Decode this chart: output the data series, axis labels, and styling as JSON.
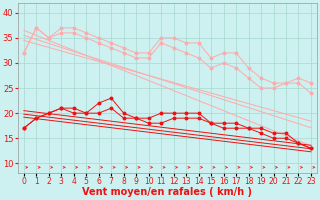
{
  "x": [
    0,
    1,
    2,
    3,
    4,
    5,
    6,
    7,
    8,
    9,
    10,
    11,
    12,
    13,
    14,
    15,
    16,
    17,
    18,
    19,
    20,
    21,
    22,
    23
  ],
  "lines_pink_data": [
    [
      32,
      37,
      35,
      37,
      37,
      36,
      35,
      34,
      33,
      32,
      32,
      35,
      35,
      34,
      34,
      31,
      32,
      32,
      29,
      27,
      26,
      26,
      27,
      26
    ],
    [
      32,
      37,
      35,
      36,
      36,
      35,
      34,
      33,
      32,
      31,
      31,
      34,
      33,
      32,
      31,
      29,
      30,
      29,
      27,
      25,
      25,
      26,
      26,
      24
    ]
  ],
  "lines_pink_trend": [
    [
      36.5,
      35.5,
      34.5,
      33.5,
      32.5,
      31.5,
      30.5,
      29.5,
      28.5,
      27.5,
      26.5,
      25.5,
      24.5,
      23.5,
      22.5,
      21.5,
      20.5,
      19.5,
      18.5,
      17.5,
      16.5,
      15.5,
      14.5,
      13.5
    ],
    [
      35.5,
      34.7,
      33.9,
      33.1,
      32.3,
      31.5,
      30.7,
      29.9,
      29.1,
      28.3,
      27.5,
      26.7,
      25.9,
      25.1,
      24.3,
      23.5,
      22.7,
      21.9,
      21.1,
      20.3,
      19.5,
      18.7,
      17.9,
      17.1
    ],
    [
      34.5,
      33.8,
      33.1,
      32.4,
      31.7,
      31.0,
      30.3,
      29.6,
      28.9,
      28.2,
      27.5,
      26.8,
      26.1,
      25.4,
      24.7,
      24.0,
      23.3,
      22.6,
      21.9,
      21.2,
      20.5,
      19.8,
      19.1,
      18.4
    ]
  ],
  "lines_red_data": [
    [
      17,
      19,
      20,
      21,
      21,
      20,
      22,
      23,
      20,
      19,
      19,
      20,
      20,
      20,
      20,
      18,
      18,
      18,
      17,
      17,
      16,
      16,
      14,
      13
    ],
    [
      17,
      19,
      20,
      21,
      20,
      20,
      20,
      21,
      19,
      19,
      18,
      18,
      19,
      19,
      19,
      18,
      17,
      17,
      17,
      16,
      15,
      15,
      14,
      13
    ]
  ],
  "lines_red_trend": [
    [
      20.5,
      20.2,
      19.9,
      19.6,
      19.3,
      19.0,
      18.7,
      18.4,
      18.1,
      17.8,
      17.5,
      17.2,
      16.9,
      16.6,
      16.3,
      16.0,
      15.7,
      15.4,
      15.1,
      14.8,
      14.5,
      14.2,
      13.9,
      13.6
    ],
    [
      19.8,
      19.5,
      19.2,
      18.9,
      18.6,
      18.3,
      18.0,
      17.7,
      17.4,
      17.1,
      16.8,
      16.5,
      16.2,
      15.9,
      15.6,
      15.3,
      15.0,
      14.7,
      14.4,
      14.1,
      13.8,
      13.5,
      13.2,
      12.9
    ],
    [
      19.2,
      18.9,
      18.6,
      18.3,
      18.0,
      17.7,
      17.4,
      17.1,
      16.8,
      16.5,
      16.2,
      15.9,
      15.6,
      15.3,
      15.0,
      14.7,
      14.4,
      14.1,
      13.8,
      13.5,
      13.2,
      12.9,
      12.6,
      12.3
    ]
  ],
  "bg_color": "#cdf0f0",
  "grid_color": "#a8d8d0",
  "pink_color": "#ffaaaa",
  "red_color": "#ee1111",
  "arrow_color": "#ee3333",
  "xlabel": "Vent moyen/en rafales ( km/h )",
  "xlabel_fontsize": 7,
  "tick_fontsize": 6,
  "ylim": [
    8,
    42
  ],
  "yticks": [
    10,
    15,
    20,
    25,
    30,
    35,
    40
  ],
  "xlim": [
    -0.5,
    23.5
  ]
}
